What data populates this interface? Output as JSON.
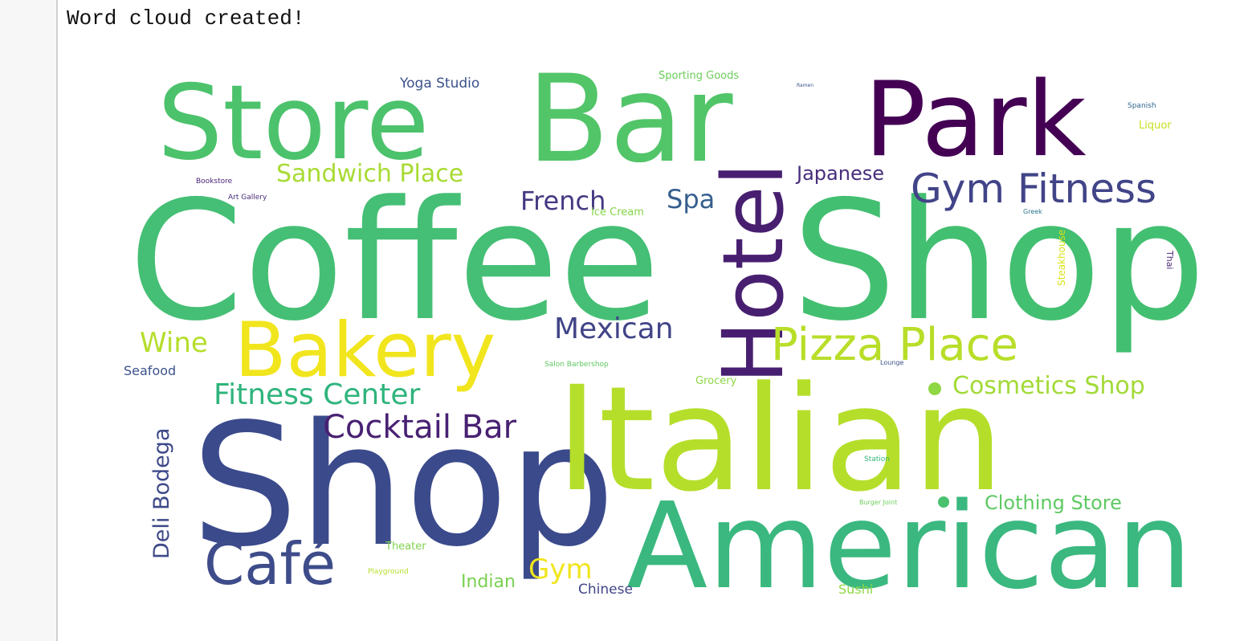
{
  "output": {
    "message": "Word cloud created!"
  },
  "word_cloud": {
    "words": [
      {
        "text": "Coffee",
        "color": "#45bf75"
      },
      {
        "text": "Shop",
        "color": "#43bf71"
      },
      {
        "text": "Shop",
        "color": "#3b4a8b"
      },
      {
        "text": "Italian",
        "color": "#b5de2b"
      },
      {
        "text": "American",
        "color": "#3ab87f"
      },
      {
        "text": "Bar",
        "color": "#52c569"
      },
      {
        "text": "Store",
        "color": "#4cc26c"
      },
      {
        "text": "Park",
        "color": "#440154"
      },
      {
        "text": "Hotel",
        "color": "#481f70"
      },
      {
        "text": "Bakery",
        "color": "#f1e51d"
      },
      {
        "text": "Pizza Place",
        "color": "#b8de29"
      },
      {
        "text": "Café",
        "color": "#3e4c8a"
      },
      {
        "text": "Gym Fitness",
        "color": "#414487"
      },
      {
        "text": "Cocktail Bar",
        "color": "#482173"
      },
      {
        "text": "Fitness Center",
        "color": "#2fb47c"
      },
      {
        "text": "Mexican",
        "color": "#414487"
      },
      {
        "text": "Sandwich Place",
        "color": "#a8db34"
      },
      {
        "text": "Cosmetics Shop",
        "color": "#a2da37"
      },
      {
        "text": "Clothing Store",
        "color": "#5ec962"
      },
      {
        "text": "French",
        "color": "#443983"
      },
      {
        "text": "Japanese",
        "color": "#472d7b"
      },
      {
        "text": "Spa",
        "color": "#355f8d"
      },
      {
        "text": "Wine",
        "color": "#b5de2b"
      },
      {
        "text": "Deli Bodega",
        "color": "#3e4989"
      },
      {
        "text": "Gym",
        "color": "#f1e51d"
      },
      {
        "text": "Indian",
        "color": "#7ad151"
      },
      {
        "text": "Chinese",
        "color": "#414487"
      },
      {
        "text": "Seafood",
        "color": "#3b528b"
      },
      {
        "text": "Yoga Studio",
        "color": "#3b528b"
      },
      {
        "text": "Sporting Goods",
        "color": "#6ccd5a"
      },
      {
        "text": "Sushi",
        "color": "#8fd744"
      },
      {
        "text": "Theater",
        "color": "#7fd34e"
      },
      {
        "text": "Ice Cream",
        "color": "#86d549"
      },
      {
        "text": "Grocery",
        "color": "#8fd744"
      },
      {
        "text": "Salon Barbershop",
        "color": "#5ec962"
      },
      {
        "text": "Steakhouse",
        "color": "#d8e219"
      },
      {
        "text": "Liquor",
        "color": "#c8e020"
      },
      {
        "text": "Spanish",
        "color": "#31688e"
      },
      {
        "text": "Bookstore",
        "color": "#482677"
      },
      {
        "text": "Art Gallery",
        "color": "#472c7a"
      },
      {
        "text": "Greek",
        "color": "#2a788e"
      },
      {
        "text": "Thai",
        "color": "#482878"
      },
      {
        "text": "Lounge",
        "color": "#3b528b"
      },
      {
        "text": "Station",
        "color": "#35b779"
      },
      {
        "text": "Burger Joint",
        "color": "#6ccd5a"
      },
      {
        "text": "Playground",
        "color": "#b5de2b"
      },
      {
        "text": "Ramen",
        "color": "#3b528b"
      }
    ],
    "dots": [
      {
        "color": "#8fd744"
      },
      {
        "color": "#4ac16d"
      }
    ]
  }
}
